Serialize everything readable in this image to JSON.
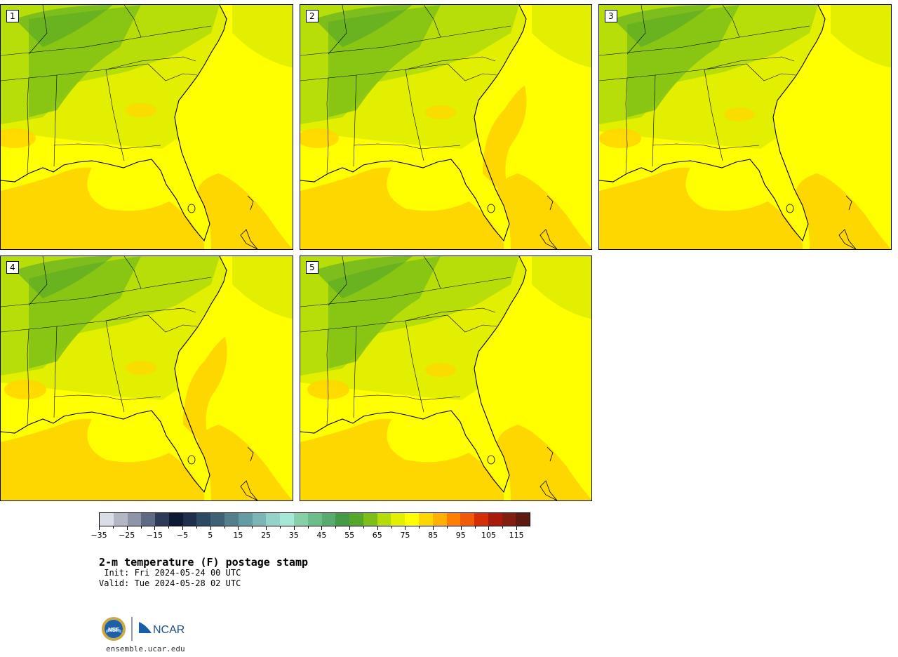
{
  "panels": [
    {
      "label": "1"
    },
    {
      "label": "2"
    },
    {
      "label": "3"
    },
    {
      "label": "4"
    },
    {
      "label": "5"
    }
  ],
  "colorbar": {
    "colors": [
      "#d9dde4",
      "#b3b7c4",
      "#8e95a8",
      "#5f6a84",
      "#2e3a59",
      "#0e1a33",
      "#1e2f4d",
      "#2c4a63",
      "#3e6275",
      "#517f8c",
      "#649ca3",
      "#7bb5b5",
      "#94d3c8",
      "#a5e8d8",
      "#86d0a8",
      "#6dbd8a",
      "#58aa6e",
      "#449a47",
      "#55a72a",
      "#7dbf16",
      "#b4dc0a",
      "#e2ef00",
      "#ffff00",
      "#ffd700",
      "#ffb000",
      "#ff8000",
      "#f05a08",
      "#d52e05",
      "#a81b0a",
      "#831d0e",
      "#5e1a10"
    ],
    "tick_labels": [
      "−35",
      "−25",
      "−15",
      "−5",
      "5",
      "15",
      "25",
      "35",
      "45",
      "55",
      "65",
      "75",
      "85",
      "95",
      "105",
      "115"
    ]
  },
  "title": "2-m temperature (F) postage stamp",
  "init": " Init: Fri 2024-05-24 00 UTC",
  "valid": "Valid: Tue 2024-05-28 02 UTC",
  "logo": {
    "nsf": "NSF",
    "ncar": "NCAR"
  },
  "site": "ensemble.ucar.edu"
}
